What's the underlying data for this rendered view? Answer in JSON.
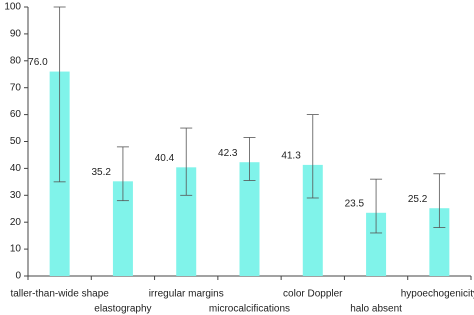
{
  "chart_data": {
    "type": "bar",
    "categories": [
      "taller-than-wide shape",
      "elastography",
      "irregular margins",
      "microcalcifications",
      "color Doppler",
      "halo absent",
      "hypoechogenicity"
    ],
    "values": [
      76.0,
      35.2,
      40.4,
      42.3,
      41.3,
      23.5,
      25.2
    ],
    "value_labels": [
      "76.0",
      "35.2",
      "40.4",
      "42.3",
      "41.3",
      "23.5",
      "25.2"
    ],
    "ci_low": [
      35,
      28,
      30,
      35.5,
      29,
      16,
      18
    ],
    "ci_high": [
      100,
      48,
      55,
      51.5,
      60,
      36,
      38
    ],
    "color": "#80f3ea",
    "ylim": [
      0,
      100
    ],
    "yticks": [
      0,
      10,
      20,
      30,
      40,
      50,
      60,
      70,
      80,
      90,
      100
    ]
  }
}
